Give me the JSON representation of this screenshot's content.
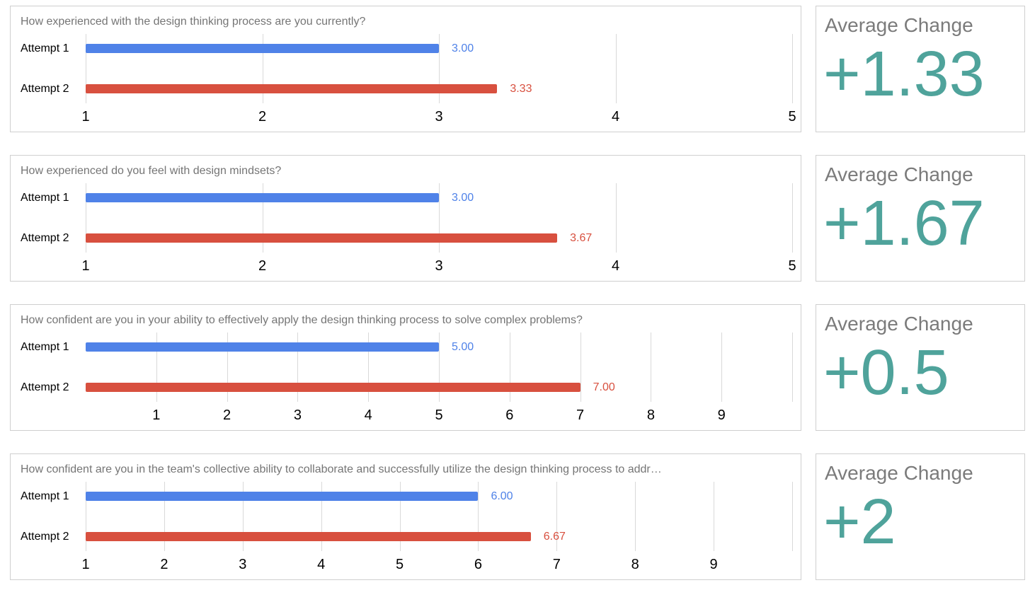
{
  "colors": {
    "attempt1": "#4f82e8",
    "attempt2": "#d8503f",
    "change": "#4fa39b",
    "title_text": "#757575",
    "gridline": "#d9d9d9",
    "card_border": "#cfcfcf"
  },
  "chart_data": [
    {
      "type": "bar",
      "orientation": "horizontal",
      "title": "How experienced with the design thinking process are you currently?",
      "categories": [
        "Attempt 1",
        "Attempt 2"
      ],
      "series": [
        {
          "name": "Attempt 1",
          "value": 3.0
        },
        {
          "name": "Attempt 2",
          "value": 3.33
        }
      ],
      "values": [
        3.0,
        3.33
      ],
      "value_labels": [
        "3.00",
        "3.33"
      ],
      "series_colors": [
        "#4f82e8",
        "#d8503f"
      ],
      "xlim": [
        1,
        5
      ],
      "grid": true,
      "legend": "none",
      "ticks": [
        {
          "value": 1,
          "label": "1"
        },
        {
          "value": 2,
          "label": "2"
        },
        {
          "value": 3,
          "label": "3"
        },
        {
          "value": 4,
          "label": "4"
        },
        {
          "value": 5,
          "label": "5"
        }
      ],
      "summary": {
        "label": "Average Change",
        "value": "+1.33"
      }
    },
    {
      "type": "bar",
      "orientation": "horizontal",
      "title": "How experienced do you feel with design mindsets?",
      "categories": [
        "Attempt 1",
        "Attempt 2"
      ],
      "series": [
        {
          "name": "Attempt 1",
          "value": 3.0
        },
        {
          "name": "Attempt 2",
          "value": 3.67
        }
      ],
      "values": [
        3.0,
        3.67
      ],
      "value_labels": [
        "3.00",
        "3.67"
      ],
      "series_colors": [
        "#4f82e8",
        "#d8503f"
      ],
      "xlim": [
        1,
        5
      ],
      "grid": true,
      "legend": "none",
      "ticks": [
        {
          "value": 1,
          "label": "1"
        },
        {
          "value": 2,
          "label": "2"
        },
        {
          "value": 3,
          "label": "3"
        },
        {
          "value": 4,
          "label": "4"
        },
        {
          "value": 5,
          "label": "5"
        }
      ],
      "summary": {
        "label": "Average Change",
        "value": "+1.67"
      }
    },
    {
      "type": "bar",
      "orientation": "horizontal",
      "title": "How confident are you in your ability to effectively apply the design thinking process to solve complex problems?",
      "categories": [
        "Attempt 1",
        "Attempt 2"
      ],
      "series": [
        {
          "name": "Attempt 1",
          "value": 5.0
        },
        {
          "name": "Attempt 2",
          "value": 7.0
        }
      ],
      "values": [
        5.0,
        7.0
      ],
      "value_labels": [
        "5.00",
        "7.00"
      ],
      "series_colors": [
        "#4f82e8",
        "#d8503f"
      ],
      "xlim": [
        0,
        10
      ],
      "grid": true,
      "legend": "none",
      "ticks": [
        {
          "value": 1,
          "label": "1"
        },
        {
          "value": 2,
          "label": "2"
        },
        {
          "value": 3,
          "label": "3"
        },
        {
          "value": 4,
          "label": "4"
        },
        {
          "value": 5,
          "label": "5"
        },
        {
          "value": 6,
          "label": "6"
        },
        {
          "value": 7,
          "label": "7"
        },
        {
          "value": 8,
          "label": "8"
        },
        {
          "value": 9,
          "label": "9"
        },
        {
          "value": 10,
          "label": ""
        }
      ],
      "summary": {
        "label": "Average Change",
        "value": "+0.5"
      }
    },
    {
      "type": "bar",
      "orientation": "horizontal",
      "title": "How confident are you in the team's collective ability to collaborate and successfully utilize the design thinking process to addr…",
      "categories": [
        "Attempt 1",
        "Attempt 2"
      ],
      "series": [
        {
          "name": "Attempt 1",
          "value": 6.0
        },
        {
          "name": "Attempt 2",
          "value": 6.67
        }
      ],
      "values": [
        6.0,
        6.67
      ],
      "value_labels": [
        "6.00",
        "6.67"
      ],
      "series_colors": [
        "#4f82e8",
        "#d8503f"
      ],
      "xlim": [
        1,
        10
      ],
      "grid": true,
      "legend": "none",
      "ticks": [
        {
          "value": 1,
          "label": "1"
        },
        {
          "value": 2,
          "label": "2"
        },
        {
          "value": 3,
          "label": "3"
        },
        {
          "value": 4,
          "label": "4"
        },
        {
          "value": 5,
          "label": "5"
        },
        {
          "value": 6,
          "label": "6"
        },
        {
          "value": 7,
          "label": "7"
        },
        {
          "value": 8,
          "label": "8"
        },
        {
          "value": 9,
          "label": "9"
        },
        {
          "value": 10,
          "label": ""
        }
      ],
      "summary": {
        "label": "Average Change",
        "value": "+2"
      }
    }
  ]
}
